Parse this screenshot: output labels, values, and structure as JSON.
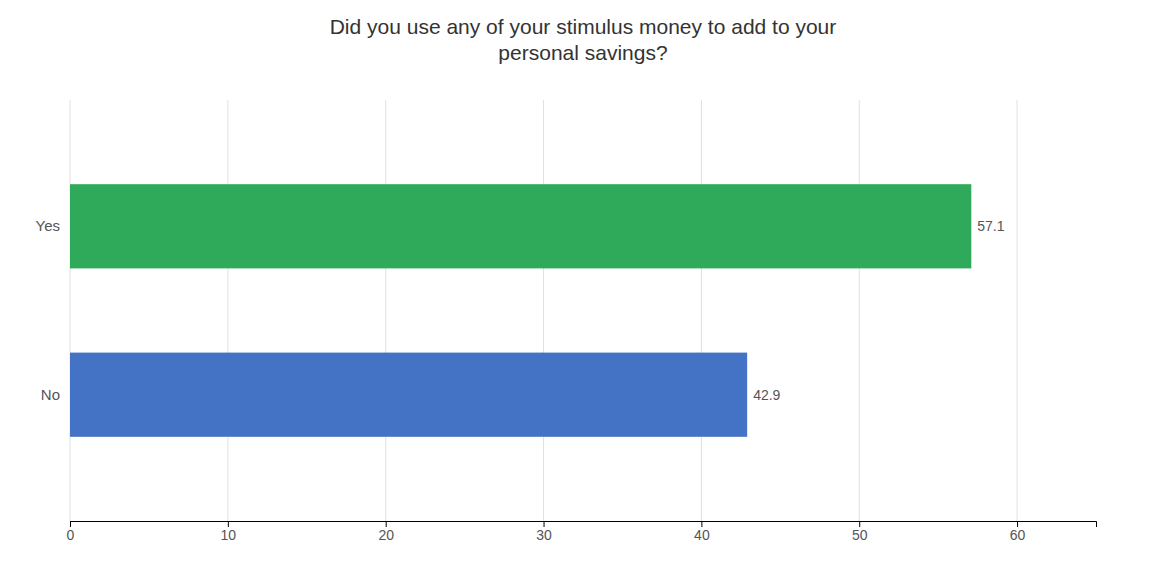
{
  "chart_data": {
    "type": "bar",
    "orientation": "horizontal",
    "title": "Did you use any of your stimulus money to add to your\npersonal savings?",
    "categories": [
      "Yes",
      "No"
    ],
    "values": [
      57.1,
      42.9
    ],
    "colors": [
      "#2EAA5A",
      "#4472C4"
    ],
    "xlim": [
      0,
      65
    ],
    "xticks": [
      0,
      10,
      20,
      30,
      40,
      50,
      60
    ],
    "grid": true,
    "data_labels": true
  }
}
